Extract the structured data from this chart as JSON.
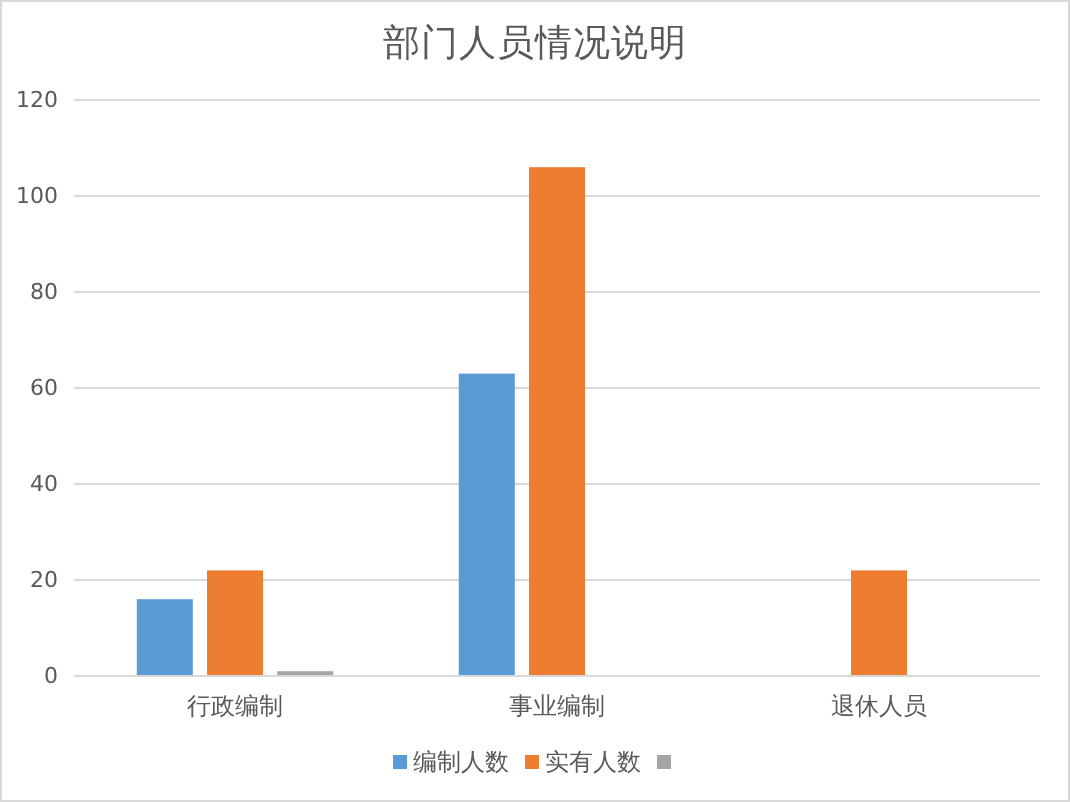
{
  "chart_data": {
    "type": "bar",
    "title": "部门人员情况说明",
    "categories": [
      "行政编制",
      "事业编制",
      "退休人员"
    ],
    "series": [
      {
        "name": "编制人数",
        "color": "#5b9bd5",
        "values": [
          16,
          63,
          null
        ]
      },
      {
        "name": "实有人数",
        "color": "#ed7d31",
        "values": [
          22,
          106,
          22
        ]
      },
      {
        "color": "#a5a5a5",
        "values": [
          1,
          null,
          null
        ]
      }
    ],
    "ylim": [
      0,
      120
    ],
    "yticks": [
      0,
      20,
      40,
      60,
      80,
      100,
      120
    ],
    "grid": "y",
    "legend": "bottom"
  }
}
